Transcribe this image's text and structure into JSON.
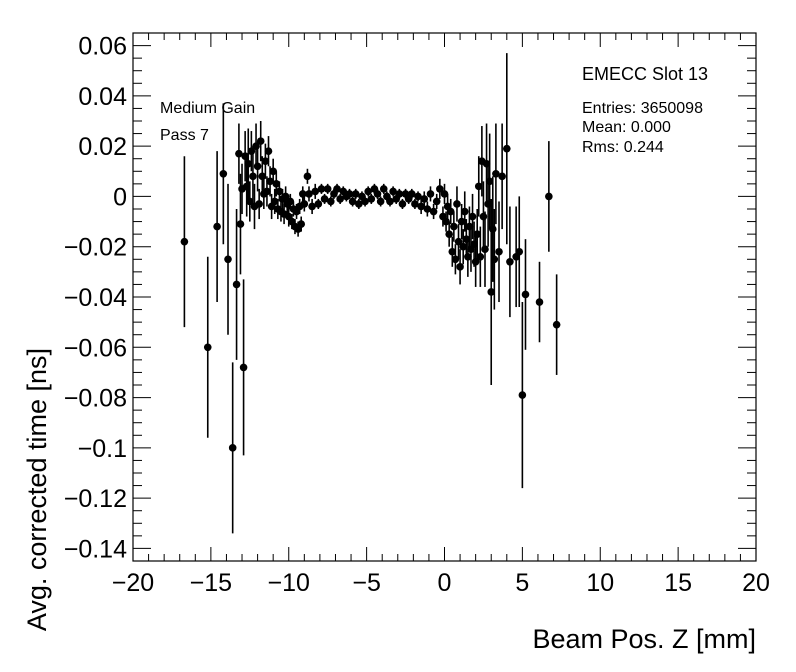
{
  "chart_data": {
    "type": "scatter",
    "title": "",
    "xlabel": "Beam Pos. Z [mm]",
    "ylabel": "Avg. corrected time [ns]",
    "xlim": [
      -20,
      20
    ],
    "ylim": [
      -0.145,
      0.065
    ],
    "x_ticks": [
      -20,
      -15,
      -10,
      -5,
      0,
      5,
      10,
      15,
      20
    ],
    "x_tick_labels": [
      "−20",
      "−15",
      "−10",
      "−5",
      "0",
      "5",
      "10",
      "15",
      "20"
    ],
    "y_ticks": [
      -0.14,
      -0.12,
      -0.1,
      -0.08,
      -0.06,
      -0.04,
      -0.02,
      0,
      0.02,
      0.04,
      0.06
    ],
    "y_tick_labels": [
      "−0.14",
      "−0.12",
      "−0.1",
      "−0.08",
      "−0.06",
      "−0.04",
      "−0.02",
      "0",
      "0.02",
      "0.04",
      "0.06"
    ],
    "grid": false,
    "marker_color": "#000000",
    "annotations": {
      "left_line1": "Medium Gain",
      "left_line2": "Pass 7",
      "stats_title": "EMECC Slot 13",
      "entries": "Entries: 3650098",
      "mean": "Mean: 0.000",
      "rms": "Rms: 0.244"
    },
    "series": [
      {
        "points": [
          {
            "x": -16.7,
            "y": -0.018,
            "err": 0.034
          },
          {
            "x": -15.2,
            "y": -0.06,
            "err": 0.036
          },
          {
            "x": -14.6,
            "y": -0.012,
            "err": 0.03
          },
          {
            "x": -14.2,
            "y": 0.009,
            "err": 0.028
          },
          {
            "x": -13.9,
            "y": -0.025,
            "err": 0.03
          },
          {
            "x": -13.6,
            "y": -0.1,
            "err": 0.034
          },
          {
            "x": -13.35,
            "y": -0.035,
            "err": 0.03
          },
          {
            "x": -13.2,
            "y": 0.017,
            "err": 0.012
          },
          {
            "x": -13.1,
            "y": -0.011,
            "err": 0.02
          },
          {
            "x": -13.0,
            "y": 0.003,
            "err": 0.01
          },
          {
            "x": -12.9,
            "y": -0.068,
            "err": 0.035
          },
          {
            "x": -12.8,
            "y": 0.016,
            "err": 0.01
          },
          {
            "x": -12.7,
            "y": 0.004,
            "err": 0.012
          },
          {
            "x": -12.6,
            "y": 0.013,
            "err": 0.014
          },
          {
            "x": -12.5,
            "y": -0.002,
            "err": 0.008
          },
          {
            "x": -12.4,
            "y": 0.018,
            "err": 0.008
          },
          {
            "x": -12.3,
            "y": 0.008,
            "err": 0.012
          },
          {
            "x": -12.2,
            "y": -0.004,
            "err": 0.009
          },
          {
            "x": -12.1,
            "y": 0.02,
            "err": 0.009
          },
          {
            "x": -12.0,
            "y": 0.012,
            "err": 0.01
          },
          {
            "x": -11.9,
            "y": -0.003,
            "err": 0.006
          },
          {
            "x": -11.8,
            "y": 0.022,
            "err": 0.008
          },
          {
            "x": -11.7,
            "y": 0.008,
            "err": 0.008
          },
          {
            "x": -11.6,
            "y": 0.001,
            "err": 0.006
          },
          {
            "x": -11.5,
            "y": 0.014,
            "err": 0.007
          },
          {
            "x": -11.4,
            "y": 0.002,
            "err": 0.006
          },
          {
            "x": -11.3,
            "y": 0.018,
            "err": 0.006
          },
          {
            "x": -11.2,
            "y": 0.006,
            "err": 0.006
          },
          {
            "x": -11.1,
            "y": -0.004,
            "err": 0.005
          },
          {
            "x": -11.0,
            "y": 0.01,
            "err": 0.005
          },
          {
            "x": -10.9,
            "y": -0.002,
            "err": 0.005
          },
          {
            "x": -10.8,
            "y": 0.005,
            "err": 0.005
          },
          {
            "x": -10.7,
            "y": -0.005,
            "err": 0.004
          },
          {
            "x": -10.6,
            "y": 0.002,
            "err": 0.004
          },
          {
            "x": -10.5,
            "y": -0.006,
            "err": 0.004
          },
          {
            "x": -10.4,
            "y": -0.001,
            "err": 0.004
          },
          {
            "x": -10.3,
            "y": -0.007,
            "err": 0.004
          },
          {
            "x": -10.2,
            "y": 0.0,
            "err": 0.004
          },
          {
            "x": -10.1,
            "y": -0.003,
            "err": 0.004
          },
          {
            "x": -10.0,
            "y": -0.008,
            "err": 0.004
          },
          {
            "x": -9.9,
            "y": -0.002,
            "err": 0.003
          },
          {
            "x": -9.8,
            "y": -0.01,
            "err": 0.003
          },
          {
            "x": -9.7,
            "y": -0.005,
            "err": 0.003
          },
          {
            "x": -9.6,
            "y": -0.012,
            "err": 0.003
          },
          {
            "x": -9.5,
            "y": -0.006,
            "err": 0.003
          },
          {
            "x": -9.4,
            "y": -0.013,
            "err": 0.003
          },
          {
            "x": -9.3,
            "y": -0.004,
            "err": 0.003
          },
          {
            "x": -9.2,
            "y": -0.011,
            "err": 0.003
          },
          {
            "x": -9.1,
            "y": 0.001,
            "err": 0.003
          },
          {
            "x": -9.0,
            "y": -0.003,
            "err": 0.003
          },
          {
            "x": -8.8,
            "y": 0.008,
            "err": 0.003
          },
          {
            "x": -8.7,
            "y": 0.001,
            "err": 0.003
          },
          {
            "x": -8.5,
            "y": -0.004,
            "err": 0.003
          },
          {
            "x": -8.3,
            "y": 0.002,
            "err": 0.003
          },
          {
            "x": -8.1,
            "y": -0.003,
            "err": 0.002
          },
          {
            "x": -7.9,
            "y": 0.003,
            "err": 0.002
          },
          {
            "x": -7.7,
            "y": -0.001,
            "err": 0.002
          },
          {
            "x": -7.5,
            "y": 0.003,
            "err": 0.002
          },
          {
            "x": -7.3,
            "y": -0.002,
            "err": 0.002
          },
          {
            "x": -7.1,
            "y": 0.001,
            "err": 0.002
          },
          {
            "x": -6.9,
            "y": 0.003,
            "err": 0.002
          },
          {
            "x": -6.7,
            "y": -0.001,
            "err": 0.002
          },
          {
            "x": -6.5,
            "y": 0.002,
            "err": 0.002
          },
          {
            "x": -6.3,
            "y": 0.0,
            "err": 0.002
          },
          {
            "x": -6.1,
            "y": 0.001,
            "err": 0.002
          },
          {
            "x": -5.9,
            "y": -0.002,
            "err": 0.002
          },
          {
            "x": -5.7,
            "y": 0.001,
            "err": 0.002
          },
          {
            "x": -5.5,
            "y": -0.003,
            "err": 0.002
          },
          {
            "x": -5.3,
            "y": 0.0,
            "err": 0.002
          },
          {
            "x": -5.1,
            "y": -0.002,
            "err": 0.002
          },
          {
            "x": -4.9,
            "y": 0.002,
            "err": 0.002
          },
          {
            "x": -4.7,
            "y": -0.001,
            "err": 0.002
          },
          {
            "x": -4.5,
            "y": 0.003,
            "err": 0.002
          },
          {
            "x": -4.3,
            "y": 0.001,
            "err": 0.002
          },
          {
            "x": -4.1,
            "y": -0.002,
            "err": 0.002
          },
          {
            "x": -3.9,
            "y": 0.003,
            "err": 0.002
          },
          {
            "x": -3.7,
            "y": 0.0,
            "err": 0.002
          },
          {
            "x": -3.5,
            "y": -0.002,
            "err": 0.002
          },
          {
            "x": -3.3,
            "y": 0.002,
            "err": 0.002
          },
          {
            "x": -3.1,
            "y": -0.001,
            "err": 0.002
          },
          {
            "x": -2.9,
            "y": 0.001,
            "err": 0.002
          },
          {
            "x": -2.7,
            "y": -0.003,
            "err": 0.002
          },
          {
            "x": -2.5,
            "y": 0.001,
            "err": 0.002
          },
          {
            "x": -2.3,
            "y": -0.001,
            "err": 0.002
          },
          {
            "x": -2.1,
            "y": 0.001,
            "err": 0.002
          },
          {
            "x": -1.9,
            "y": -0.003,
            "err": 0.002
          },
          {
            "x": -1.7,
            "y": 0.0,
            "err": 0.002
          },
          {
            "x": -1.5,
            "y": -0.004,
            "err": 0.003
          },
          {
            "x": -1.3,
            "y": -0.001,
            "err": 0.003
          },
          {
            "x": -1.1,
            "y": -0.005,
            "err": 0.003
          },
          {
            "x": -0.9,
            "y": 0.001,
            "err": 0.003
          },
          {
            "x": -0.7,
            "y": -0.006,
            "err": 0.003
          },
          {
            "x": -0.5,
            "y": -0.002,
            "err": 0.003
          },
          {
            "x": -0.3,
            "y": 0.003,
            "err": 0.004
          },
          {
            "x": -0.1,
            "y": -0.008,
            "err": 0.004
          },
          {
            "x": 0.0,
            "y": 0.001,
            "err": 0.004
          },
          {
            "x": 0.1,
            "y": -0.01,
            "err": 0.004
          },
          {
            "x": 0.2,
            "y": -0.004,
            "err": 0.005
          },
          {
            "x": 0.3,
            "y": -0.015,
            "err": 0.005
          },
          {
            "x": 0.4,
            "y": -0.006,
            "err": 0.005
          },
          {
            "x": 0.5,
            "y": -0.022,
            "err": 0.006
          },
          {
            "x": 0.6,
            "y": -0.012,
            "err": 0.006
          },
          {
            "x": 0.7,
            "y": -0.025,
            "err": 0.006
          },
          {
            "x": 0.8,
            "y": -0.003,
            "err": 0.007
          },
          {
            "x": 0.9,
            "y": -0.018,
            "err": 0.007
          },
          {
            "x": 1.0,
            "y": -0.028,
            "err": 0.007
          },
          {
            "x": 1.1,
            "y": -0.01,
            "err": 0.007
          },
          {
            "x": 1.2,
            "y": -0.02,
            "err": 0.007
          },
          {
            "x": 1.3,
            "y": -0.006,
            "err": 0.008
          },
          {
            "x": 1.4,
            "y": -0.017,
            "err": 0.008
          },
          {
            "x": 1.5,
            "y": -0.024,
            "err": 0.008
          },
          {
            "x": 1.6,
            "y": -0.012,
            "err": 0.008
          },
          {
            "x": 1.7,
            "y": -0.021,
            "err": 0.009
          },
          {
            "x": 1.8,
            "y": -0.008,
            "err": 0.009
          },
          {
            "x": 1.9,
            "y": -0.019,
            "err": 0.009
          },
          {
            "x": 2.0,
            "y": -0.026,
            "err": 0.01
          },
          {
            "x": 2.1,
            "y": -0.015,
            "err": 0.01
          },
          {
            "x": 2.2,
            "y": 0.004,
            "err": 0.012
          },
          {
            "x": 2.3,
            "y": -0.024,
            "err": 0.012
          },
          {
            "x": 2.4,
            "y": 0.014,
            "err": 0.014
          },
          {
            "x": 2.5,
            "y": -0.008,
            "err": 0.014
          },
          {
            "x": 2.6,
            "y": -0.021,
            "err": 0.015
          },
          {
            "x": 2.7,
            "y": 0.013,
            "err": 0.016
          },
          {
            "x": 2.8,
            "y": -0.003,
            "err": 0.017
          },
          {
            "x": 2.9,
            "y": 0.006,
            "err": 0.019
          },
          {
            "x": 3.0,
            "y": -0.038,
            "err": 0.037
          },
          {
            "x": 3.1,
            "y": -0.013,
            "err": 0.021
          },
          {
            "x": 3.2,
            "y": -0.025,
            "err": 0.02
          },
          {
            "x": 3.3,
            "y": 0.009,
            "err": 0.02
          },
          {
            "x": 3.5,
            "y": -0.022,
            "err": 0.02
          },
          {
            "x": 3.7,
            "y": 0.008,
            "err": 0.021
          },
          {
            "x": 4.0,
            "y": 0.019,
            "err": 0.038
          },
          {
            "x": 4.2,
            "y": -0.026,
            "err": 0.022
          },
          {
            "x": 4.6,
            "y": -0.024,
            "err": 0.02
          },
          {
            "x": 4.8,
            "y": -0.022,
            "err": 0.022
          },
          {
            "x": 5.0,
            "y": -0.079,
            "err": 0.037
          },
          {
            "x": 5.2,
            "y": -0.039,
            "err": 0.022
          },
          {
            "x": 6.1,
            "y": -0.042,
            "err": 0.016
          },
          {
            "x": 6.7,
            "y": 0.0,
            "err": 0.022
          },
          {
            "x": 7.2,
            "y": -0.051,
            "err": 0.02
          }
        ]
      }
    ]
  }
}
